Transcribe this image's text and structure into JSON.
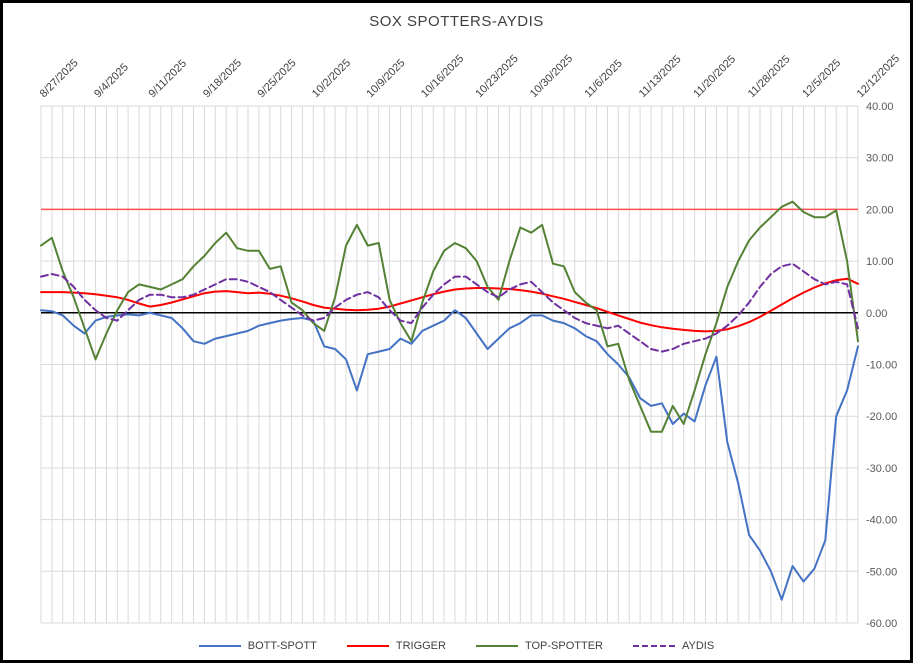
{
  "chart_data": {
    "type": "line",
    "title": "SOX SPOTTERS-AYDIS",
    "xlabel": "",
    "ylabel": "",
    "ylim": [
      -60,
      40
    ],
    "y_ticks": [
      40,
      30,
      20,
      10,
      0,
      -10,
      -20,
      -30,
      -40,
      -50,
      -60
    ],
    "grid": true,
    "legend_position": "bottom",
    "y_axis_side": "right",
    "x_axis_side": "top",
    "tick_every": 5,
    "x_tick_labels": [
      "8/27/2025",
      "9/4/2025",
      "9/11/2025",
      "9/18/2025",
      "9/25/2025",
      "10/2/2025",
      "10/9/2025",
      "10/16/2025",
      "10/23/2025",
      "10/30/2025",
      "11/6/2025",
      "11/13/2025",
      "11/20/2025",
      "11/28/2025",
      "12/5/2025",
      "12/12/2025"
    ],
    "x": [
      "8/27/2025",
      "8/28/2025",
      "8/29/2025",
      "9/2/2025",
      "9/3/2025",
      "9/4/2025",
      "9/5/2025",
      "9/8/2025",
      "9/9/2025",
      "9/10/2025",
      "9/11/2025",
      "9/12/2025",
      "9/15/2025",
      "9/16/2025",
      "9/17/2025",
      "9/18/2025",
      "9/19/2025",
      "9/22/2025",
      "9/23/2025",
      "9/24/2025",
      "9/25/2025",
      "9/26/2025",
      "9/29/2025",
      "9/30/2025",
      "10/1/2025",
      "10/2/2025",
      "10/3/2025",
      "10/6/2025",
      "10/7/2025",
      "10/8/2025",
      "10/9/2025",
      "10/10/2025",
      "10/13/2025",
      "10/14/2025",
      "10/15/2025",
      "10/16/2025",
      "10/17/2025",
      "10/20/2025",
      "10/21/2025",
      "10/22/2025",
      "10/23/2025",
      "10/24/2025",
      "10/27/2025",
      "10/28/2025",
      "10/29/2025",
      "10/30/2025",
      "10/31/2025",
      "11/3/2025",
      "11/4/2025",
      "11/5/2025",
      "11/6/2025",
      "11/7/2025",
      "11/10/2025",
      "11/11/2025",
      "11/12/2025",
      "11/13/2025",
      "11/14/2025",
      "11/17/2025",
      "11/18/2025",
      "11/19/2025",
      "11/20/2025",
      "11/21/2025",
      "11/24/2025",
      "11/25/2025",
      "11/26/2025",
      "11/28/2025",
      "12/1/2025",
      "12/2/2025",
      "12/3/2025",
      "12/4/2025",
      "12/5/2025",
      "12/8/2025",
      "12/9/2025",
      "12/10/2025",
      "12/11/2025",
      "12/12/2025"
    ],
    "reference_lines": [
      {
        "value": 0,
        "color": "#000000",
        "name": "zero-line"
      },
      {
        "value": 20,
        "color": "#ff5050",
        "name": "upper-threshold-line"
      }
    ],
    "series": [
      {
        "name": "BOTT-SPOTT",
        "color": "#4472C4",
        "dash": null,
        "values": [
          0.5,
          0.3,
          -0.5,
          -2.5,
          -4.0,
          -1.5,
          -0.8,
          -0.5,
          -0.3,
          -0.5,
          0.0,
          -0.5,
          -1.0,
          -3.0,
          -5.5,
          -6.0,
          -5.0,
          -4.5,
          -4.0,
          -3.5,
          -2.5,
          -2.0,
          -1.5,
          -1.2,
          -1.0,
          -1.5,
          -6.5,
          -7.0,
          -9.0,
          -15.0,
          -8.0,
          -7.5,
          -7.0,
          -5.0,
          -6.0,
          -3.5,
          -2.5,
          -1.5,
          0.5,
          -1.0,
          -4.0,
          -7.0,
          -5.0,
          -3.0,
          -2.0,
          -0.5,
          -0.5,
          -1.5,
          -2.0,
          -3.0,
          -4.5,
          -5.5,
          -8.0,
          -10.0,
          -12.5,
          -16.5,
          -18.0,
          -17.5,
          -21.5,
          -19.5,
          -21.0,
          -14.0,
          -8.5,
          -25.0,
          -33.0,
          -43.0,
          -46.0,
          -50.0,
          -55.5,
          -49.0,
          -52.0,
          -49.5,
          -44.0,
          -20.0,
          -15.0,
          -6.5
        ]
      },
      {
        "name": "TRIGGER",
        "color": "#FF0000",
        "dash": null,
        "values": [
          4.0,
          4.0,
          4.0,
          3.9,
          3.8,
          3.6,
          3.3,
          3.0,
          2.5,
          1.8,
          1.2,
          1.5,
          2.0,
          2.6,
          3.2,
          3.8,
          4.1,
          4.2,
          4.0,
          3.8,
          3.9,
          3.7,
          3.3,
          2.8,
          2.2,
          1.5,
          1.0,
          0.8,
          0.6,
          0.5,
          0.6,
          0.8,
          1.2,
          1.8,
          2.4,
          3.0,
          3.6,
          4.1,
          4.5,
          4.7,
          4.8,
          4.8,
          4.7,
          4.6,
          4.4,
          4.1,
          3.7,
          3.2,
          2.7,
          2.1,
          1.5,
          0.9,
          0.2,
          -0.5,
          -1.2,
          -1.9,
          -2.4,
          -2.8,
          -3.1,
          -3.3,
          -3.5,
          -3.6,
          -3.5,
          -3.2,
          -2.6,
          -1.8,
          -0.8,
          0.4,
          1.6,
          2.8,
          3.9,
          4.9,
          5.7,
          6.3,
          6.6,
          5.6
        ]
      },
      {
        "name": "TOP-SPOTTER",
        "color": "#548235",
        "dash": null,
        "values": [
          13.0,
          14.5,
          8.0,
          3.0,
          -3.0,
          -9.0,
          -4.0,
          0.5,
          4.0,
          5.5,
          5.0,
          4.5,
          5.5,
          6.5,
          9.0,
          11.0,
          13.5,
          15.5,
          12.5,
          12.0,
          12.0,
          8.5,
          9.0,
          2.0,
          0.5,
          -2.0,
          -3.5,
          3.0,
          13.0,
          17.0,
          13.0,
          13.5,
          2.5,
          -2.0,
          -5.5,
          2.0,
          8.0,
          12.0,
          13.5,
          12.5,
          10.0,
          5.0,
          2.5,
          10.0,
          16.5,
          15.5,
          17.0,
          9.5,
          9.0,
          4.0,
          2.0,
          0.5,
          -6.5,
          -6.0,
          -13.0,
          -18.0,
          -23.0,
          -23.0,
          -18.0,
          -21.5,
          -15.0,
          -8.0,
          -2.0,
          5.0,
          10.0,
          14.0,
          16.5,
          18.5,
          20.5,
          21.5,
          19.5,
          18.5,
          18.5,
          19.8,
          10.0,
          -5.5
        ]
      },
      {
        "name": "AYDIS",
        "color": "#7030A0",
        "dash": "dashed",
        "values": [
          7.0,
          7.5,
          7.0,
          5.0,
          2.5,
          0.5,
          -1.0,
          -1.5,
          0.5,
          2.5,
          3.5,
          3.5,
          3.0,
          3.0,
          3.5,
          4.5,
          5.5,
          6.5,
          6.5,
          6.0,
          5.0,
          4.0,
          2.5,
          1.0,
          -0.5,
          -1.5,
          -1.0,
          1.0,
          2.5,
          3.5,
          4.0,
          3.0,
          0.5,
          -1.5,
          -2.0,
          1.0,
          3.5,
          5.5,
          7.0,
          7.0,
          5.5,
          4.0,
          3.0,
          4.5,
          5.5,
          6.0,
          4.0,
          2.0,
          0.5,
          -1.0,
          -2.0,
          -2.5,
          -3.0,
          -2.5,
          -4.0,
          -5.5,
          -7.0,
          -7.5,
          -7.0,
          -6.0,
          -5.5,
          -5.0,
          -4.0,
          -2.5,
          -0.5,
          2.0,
          5.0,
          7.5,
          9.0,
          9.5,
          8.0,
          6.5,
          5.5,
          6.0,
          5.5,
          -3.0
        ]
      }
    ],
    "colors": {
      "gridline": "#d9d9d9",
      "tick_label": "#595959",
      "x_label": "#404040",
      "title": "#404040",
      "frame_border": "#000000"
    }
  }
}
